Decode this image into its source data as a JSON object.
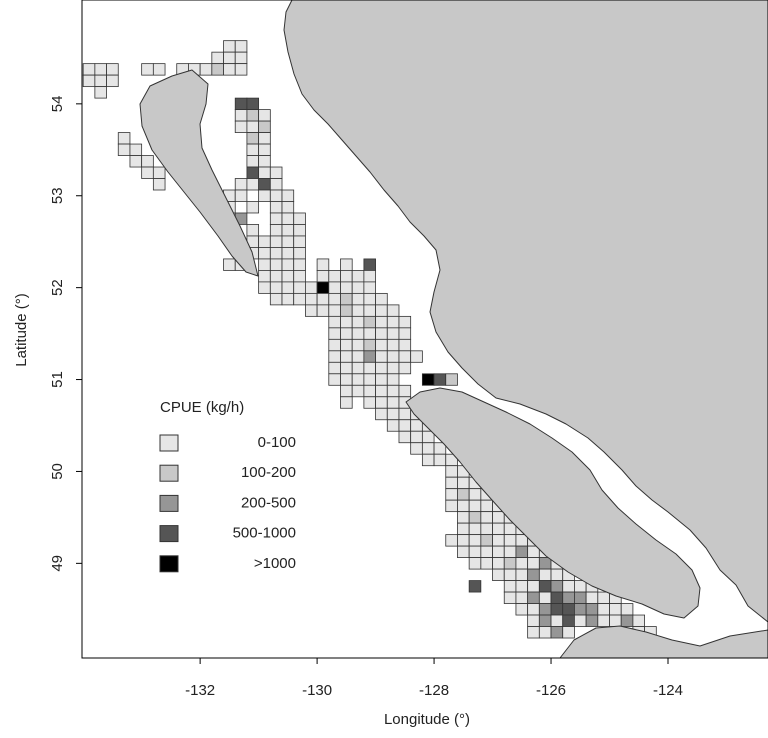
{
  "chart_data": {
    "type": "map",
    "xlabel": "Longitude (°)",
    "ylabel": "Latitude (°)",
    "xlim": [
      -134.02,
      -122.29
    ],
    "ylim": [
      47.97,
      55.13
    ],
    "xticks": [
      -132,
      -130,
      -128,
      -126,
      -124
    ],
    "yticks": [
      49,
      50,
      51,
      52,
      53,
      54
    ],
    "legend_title": "CPUE (kg/h)",
    "classes": [
      {
        "label": "0-100",
        "color": "#e6e6e6"
      },
      {
        "label": "100-200",
        "color": "#c8c8c8"
      },
      {
        "label": "200-500",
        "color": "#969696"
      },
      {
        "label": "500-1000",
        "color": "#555555"
      },
      {
        "label": ">1000",
        "color": "#000000"
      }
    ],
    "cells": [
      {
        "lat": 54.625,
        "lon": [
          -131.5,
          -131.3
        ],
        "class": [
          0,
          0
        ]
      },
      {
        "lat": 54.5,
        "lon": [
          -131.7,
          -131.5,
          -131.3
        ],
        "class": [
          0,
          0,
          0
        ]
      },
      {
        "lat": 54.375,
        "lon": [
          -133.9,
          -133.7,
          -133.5,
          -132.9,
          -132.7,
          -132.3,
          -132.1,
          -131.9,
          -131.7,
          -131.5,
          -131.3
        ],
        "class": [
          0,
          0,
          0,
          0,
          0,
          0,
          0,
          0,
          1,
          0,
          0
        ]
      },
      {
        "lat": 54.25,
        "lon": [
          -133.9,
          -133.7,
          -133.5
        ],
        "class": [
          0,
          0,
          0
        ]
      },
      {
        "lat": 54.125,
        "lon": [
          -133.7
        ],
        "class": [
          0
        ]
      },
      {
        "lat": 54.0,
        "lon": [
          -131.3,
          -131.1
        ],
        "class": [
          3,
          3
        ]
      },
      {
        "lat": 53.875,
        "lon": [
          -131.3,
          -131.1,
          -130.9
        ],
        "class": [
          0,
          1,
          0
        ]
      },
      {
        "lat": 53.75,
        "lon": [
          -131.3,
          -131.1,
          -130.9
        ],
        "class": [
          0,
          0,
          1
        ]
      },
      {
        "lat": 53.625,
        "lon": [
          -133.3,
          -131.1,
          -130.9
        ],
        "class": [
          0,
          1,
          0
        ]
      },
      {
        "lat": 53.5,
        "lon": [
          -133.3,
          -133.1,
          -131.1,
          -130.9
        ],
        "class": [
          0,
          0,
          0,
          0
        ]
      },
      {
        "lat": 53.375,
        "lon": [
          -133.1,
          -132.9,
          -131.1,
          -130.9
        ],
        "class": [
          0,
          0,
          0,
          0
        ]
      },
      {
        "lat": 53.25,
        "lon": [
          -132.9,
          -132.7,
          -131.1,
          -130.9,
          -130.7
        ],
        "class": [
          0,
          0,
          3,
          0,
          0
        ]
      },
      {
        "lat": 53.125,
        "lon": [
          -132.7,
          -131.3,
          -131.1,
          -130.9,
          -130.7
        ],
        "class": [
          0,
          0,
          0,
          3,
          0
        ]
      },
      {
        "lat": 53.0,
        "lon": [
          -131.5,
          -131.3,
          -130.9,
          -130.7,
          -130.5
        ],
        "class": [
          0,
          0,
          0,
          0,
          0
        ]
      },
      {
        "lat": 52.875,
        "lon": [
          -131.5,
          -131.1,
          -130.7,
          -130.5
        ],
        "class": [
          0,
          0,
          0,
          0
        ]
      },
      {
        "lat": 52.75,
        "lon": [
          -131.3,
          -130.7,
          -130.5,
          -130.3
        ],
        "class": [
          2,
          0,
          0,
          0
        ]
      },
      {
        "lat": 52.625,
        "lon": [
          -131.1,
          -130.7,
          -130.5,
          -130.3
        ],
        "class": [
          0,
          0,
          0,
          0
        ]
      },
      {
        "lat": 52.5,
        "lon": [
          -131.1,
          -130.9,
          -130.7,
          -130.5,
          -130.3
        ],
        "class": [
          0,
          0,
          0,
          0,
          0
        ]
      },
      {
        "lat": 52.375,
        "lon": [
          -131.1,
          -130.9,
          -130.7,
          -130.5,
          -130.3
        ],
        "class": [
          0,
          0,
          0,
          0,
          0
        ]
      },
      {
        "lat": 52.25,
        "lon": [
          -131.5,
          -131.3,
          -130.9,
          -130.7,
          -130.5,
          -130.3,
          -129.9,
          -129.5,
          -129.1
        ],
        "class": [
          0,
          0,
          0,
          0,
          0,
          0,
          0,
          0,
          3
        ]
      },
      {
        "lat": 52.125,
        "lon": [
          -130.9,
          -130.7,
          -130.5,
          -130.3,
          -129.9,
          -129.7,
          -129.5,
          -129.3,
          -129.1
        ],
        "class": [
          0,
          0,
          0,
          0,
          0,
          0,
          0,
          0,
          0
        ]
      },
      {
        "lat": 52.0,
        "lon": [
          -130.9,
          -130.7,
          -130.5,
          -130.3,
          -130.1,
          -129.9,
          -129.7,
          -129.5,
          -129.3,
          -129.1
        ],
        "class": [
          0,
          0,
          0,
          0,
          0,
          4,
          0,
          0,
          0,
          0
        ]
      },
      {
        "lat": 51.875,
        "lon": [
          -130.7,
          -130.5,
          -130.3,
          -130.1,
          -129.9,
          -129.7,
          -129.5,
          -129.3,
          -129.1,
          -128.9
        ],
        "class": [
          0,
          0,
          0,
          0,
          0,
          0,
          1,
          0,
          0,
          0
        ]
      },
      {
        "lat": 51.75,
        "lon": [
          -130.1,
          -129.9,
          -129.7,
          -129.5,
          -129.3,
          -129.1,
          -128.9,
          -128.7
        ],
        "class": [
          0,
          0,
          0,
          1,
          0,
          0,
          0,
          0
        ]
      },
      {
        "lat": 51.625,
        "lon": [
          -129.7,
          -129.5,
          -129.3,
          -129.1,
          -128.9,
          -128.7,
          -128.5
        ],
        "class": [
          0,
          0,
          0,
          1,
          0,
          0,
          0
        ]
      },
      {
        "lat": 51.5,
        "lon": [
          -129.7,
          -129.5,
          -129.3,
          -129.1,
          -128.9,
          -128.7,
          -128.5
        ],
        "class": [
          0,
          0,
          0,
          0,
          0,
          0,
          0
        ]
      },
      {
        "lat": 51.375,
        "lon": [
          -129.7,
          -129.5,
          -129.3,
          -129.1,
          -128.9,
          -128.7,
          -128.5
        ],
        "class": [
          0,
          0,
          0,
          1,
          0,
          0,
          0
        ]
      },
      {
        "lat": 51.25,
        "lon": [
          -129.7,
          -129.5,
          -129.3,
          -129.1,
          -128.9,
          -128.7,
          -128.5,
          -128.3
        ],
        "class": [
          0,
          0,
          0,
          2,
          0,
          0,
          0,
          0
        ]
      },
      {
        "lat": 51.125,
        "lon": [
          -129.7,
          -129.5,
          -129.3,
          -129.1,
          -128.9,
          -128.7,
          -128.5
        ],
        "class": [
          0,
          0,
          0,
          0,
          0,
          0,
          0
        ]
      },
      {
        "lat": 51.0,
        "lon": [
          -129.7,
          -129.5,
          -129.3,
          -129.1,
          -128.9,
          -128.7,
          -128.1,
          -127.9,
          -127.7
        ],
        "class": [
          0,
          0,
          0,
          0,
          0,
          0,
          4,
          3,
          1
        ]
      },
      {
        "lat": 50.875,
        "lon": [
          -129.5,
          -129.3,
          -129.1,
          -128.9,
          -128.7,
          -128.5
        ],
        "class": [
          0,
          0,
          0,
          0,
          0,
          0
        ]
      },
      {
        "lat": 50.75,
        "lon": [
          -129.5,
          -129.1,
          -128.9,
          -128.7,
          -128.5
        ],
        "class": [
          0,
          0,
          0,
          0,
          0
        ]
      },
      {
        "lat": 50.625,
        "lon": [
          -128.9,
          -128.7,
          -128.5,
          -128.3
        ],
        "class": [
          0,
          0,
          0,
          0
        ]
      },
      {
        "lat": 50.5,
        "lon": [
          -128.7,
          -128.5,
          -128.3,
          -128.1
        ],
        "class": [
          0,
          0,
          0,
          0
        ]
      },
      {
        "lat": 50.375,
        "lon": [
          -128.5,
          -128.3,
          -128.1
        ],
        "class": [
          0,
          0,
          0
        ]
      },
      {
        "lat": 50.25,
        "lon": [
          -128.3,
          -128.1,
          -127.9
        ],
        "class": [
          0,
          0,
          0
        ]
      },
      {
        "lat": 50.125,
        "lon": [
          -128.1,
          -127.9,
          -127.7
        ],
        "class": [
          0,
          0,
          0
        ]
      },
      {
        "lat": 50.0,
        "lon": [
          -127.7,
          -127.5
        ],
        "class": [
          0,
          0
        ]
      },
      {
        "lat": 49.875,
        "lon": [
          -127.7,
          -127.5,
          -127.3
        ],
        "class": [
          0,
          0,
          0
        ]
      },
      {
        "lat": 49.75,
        "lon": [
          -127.7,
          -127.5,
          -127.3,
          -127.1,
          -125.5,
          -125.3
        ],
        "class": [
          0,
          1,
          0,
          0,
          1,
          1
        ]
      },
      {
        "lat": 49.625,
        "lon": [
          -127.7,
          -127.5,
          -127.3,
          -127.1,
          -126.9,
          -125.5,
          -125.3,
          -125.1
        ],
        "class": [
          0,
          0,
          0,
          0,
          0,
          2,
          3,
          1
        ]
      },
      {
        "lat": 49.5,
        "lon": [
          -127.5,
          -127.3,
          -127.1,
          -126.9,
          -126.7,
          -125.5,
          -125.3,
          -125.1
        ],
        "class": [
          0,
          1,
          0,
          0,
          0,
          2,
          2,
          0
        ]
      },
      {
        "lat": 49.375,
        "lon": [
          -127.5,
          -127.3,
          -127.1,
          -126.9,
          -126.7,
          -126.5,
          -125.1,
          -124.9
        ],
        "class": [
          0,
          0,
          0,
          0,
          0,
          0,
          0,
          0
        ]
      },
      {
        "lat": 49.25,
        "lon": [
          -127.7,
          -127.5,
          -127.3,
          -127.1,
          -126.9,
          -126.7,
          -126.5,
          -126.3
        ],
        "class": [
          0,
          0,
          0,
          1,
          0,
          0,
          0,
          0
        ]
      },
      {
        "lat": 49.125,
        "lon": [
          -127.5,
          -127.3,
          -127.1,
          -126.9,
          -126.7,
          -126.5,
          -126.3,
          -126.1
        ],
        "class": [
          0,
          0,
          0,
          0,
          0,
          2,
          0,
          0
        ]
      },
      {
        "lat": 49.0,
        "lon": [
          -127.3,
          -127.1,
          -126.9,
          -126.7,
          -126.5,
          -126.3,
          -126.1,
          -125.9
        ],
        "class": [
          0,
          0,
          0,
          1,
          0,
          0,
          2,
          0
        ]
      },
      {
        "lat": 48.875,
        "lon": [
          -126.9,
          -126.7,
          -126.5,
          -126.3,
          -126.1,
          -125.9,
          -125.7
        ],
        "class": [
          0,
          0,
          0,
          2,
          0,
          0,
          0
        ]
      },
      {
        "lat": 48.75,
        "lon": [
          -127.3,
          -126.7,
          -126.5,
          -126.3,
          -126.1,
          -125.9,
          -125.7,
          -125.5,
          -125.3
        ],
        "class": [
          3,
          0,
          0,
          0,
          3,
          2,
          0,
          0,
          0
        ]
      },
      {
        "lat": 48.625,
        "lon": [
          -126.7,
          -126.5,
          -126.3,
          -126.1,
          -125.9,
          -125.7,
          -125.5,
          -125.3,
          -125.1,
          -124.9
        ],
        "class": [
          0,
          0,
          2,
          0,
          3,
          2,
          2,
          0,
          0,
          0
        ]
      },
      {
        "lat": 48.5,
        "lon": [
          -126.5,
          -126.3,
          -126.1,
          -125.9,
          -125.7,
          -125.5,
          -125.3,
          -125.1,
          -124.9,
          -124.7
        ],
        "class": [
          0,
          0,
          2,
          3,
          3,
          2,
          2,
          0,
          0,
          0
        ]
      },
      {
        "lat": 48.375,
        "lon": [
          -126.3,
          -126.1,
          -125.9,
          -125.7,
          -125.5,
          -125.3,
          -125.1,
          -124.9,
          -124.7,
          -124.5
        ],
        "class": [
          0,
          2,
          0,
          3,
          0,
          2,
          0,
          0,
          2,
          0
        ]
      },
      {
        "lat": 48.25,
        "lon": [
          -126.3,
          -126.1,
          -125.9,
          -125.7,
          -124.5,
          -124.3
        ],
        "class": [
          0,
          0,
          2,
          0,
          0,
          0
        ]
      }
    ]
  }
}
